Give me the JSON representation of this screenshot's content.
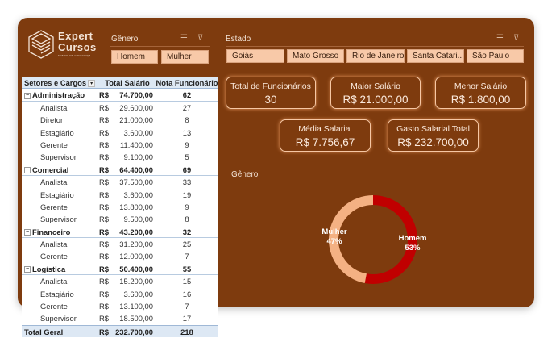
{
  "logo": {
    "line1": "Expert",
    "line2": "Cursos",
    "tagline": "ENSINO DE CONFIANÇA"
  },
  "genero_slicer": {
    "title": "Gênero",
    "items": [
      "Homem",
      "Mulher"
    ]
  },
  "estado_slicer": {
    "title": "Estado",
    "items": [
      "Goiás",
      "Mato Grosso",
      "Rio de Janeiro",
      "Santa Catari...",
      "São Paulo"
    ]
  },
  "icons": {
    "multiselect": "multi-select-icon",
    "clear_filter": "clear-filter-icon"
  },
  "pivot": {
    "headers": [
      "Setores e Cargos",
      "Total Salário",
      "Nota Funcionário"
    ],
    "currency": "R$",
    "groups": [
      {
        "name": "Administração",
        "total": "74.700,00",
        "nota": "62",
        "rows": [
          [
            "Analista",
            "29.600,00",
            "27"
          ],
          [
            "Diretor",
            "21.000,00",
            "8"
          ],
          [
            "Estagiário",
            "3.600,00",
            "13"
          ],
          [
            "Gerente",
            "11.400,00",
            "9"
          ],
          [
            "Supervisor",
            "9.100,00",
            "5"
          ]
        ]
      },
      {
        "name": "Comercial",
        "total": "64.400,00",
        "nota": "69",
        "rows": [
          [
            "Analista",
            "37.500,00",
            "33"
          ],
          [
            "Estagiário",
            "3.600,00",
            "19"
          ],
          [
            "Gerente",
            "13.800,00",
            "9"
          ],
          [
            "Supervisor",
            "9.500,00",
            "8"
          ]
        ]
      },
      {
        "name": "Financeiro",
        "total": "43.200,00",
        "nota": "32",
        "rows": [
          [
            "Analista",
            "31.200,00",
            "25"
          ],
          [
            "Gerente",
            "12.000,00",
            "7"
          ]
        ]
      },
      {
        "name": "Logística",
        "total": "50.400,00",
        "nota": "55",
        "rows": [
          [
            "Analista",
            "15.200,00",
            "15"
          ],
          [
            "Estagiário",
            "3.600,00",
            "16"
          ],
          [
            "Gerente",
            "13.100,00",
            "7"
          ],
          [
            "Supervisor",
            "18.500,00",
            "17"
          ]
        ]
      }
    ],
    "grand_total": {
      "label": "Total Geral",
      "total": "232.700,00",
      "nota": "218"
    }
  },
  "kpis": {
    "total_funcionarios": {
      "label": "Total de Funcionários",
      "value": "30"
    },
    "maior_salario": {
      "label": "Maior Salário",
      "value": "R$ 21.000,00"
    },
    "menor_salario": {
      "label": "Menor Salário",
      "value": "R$ 1.800,00"
    },
    "media_salarial": {
      "label": "Média Salarial",
      "value": "R$ 7.756,67"
    },
    "gasto_total": {
      "label": "Gasto Salarial Total",
      "value": "R$ 232.700,00"
    }
  },
  "chart_data": {
    "type": "pie",
    "subtype": "donut",
    "title": "Gênero",
    "categories": [
      "Homem",
      "Mulher"
    ],
    "values": [
      53,
      47
    ],
    "labels": [
      "53%",
      "47%"
    ],
    "colors": [
      "#c00000",
      "#f4b183"
    ]
  },
  "colors": {
    "background": "#7e3b0e",
    "chip": "#f8c9a8",
    "card_border": "#f6c7a4"
  }
}
